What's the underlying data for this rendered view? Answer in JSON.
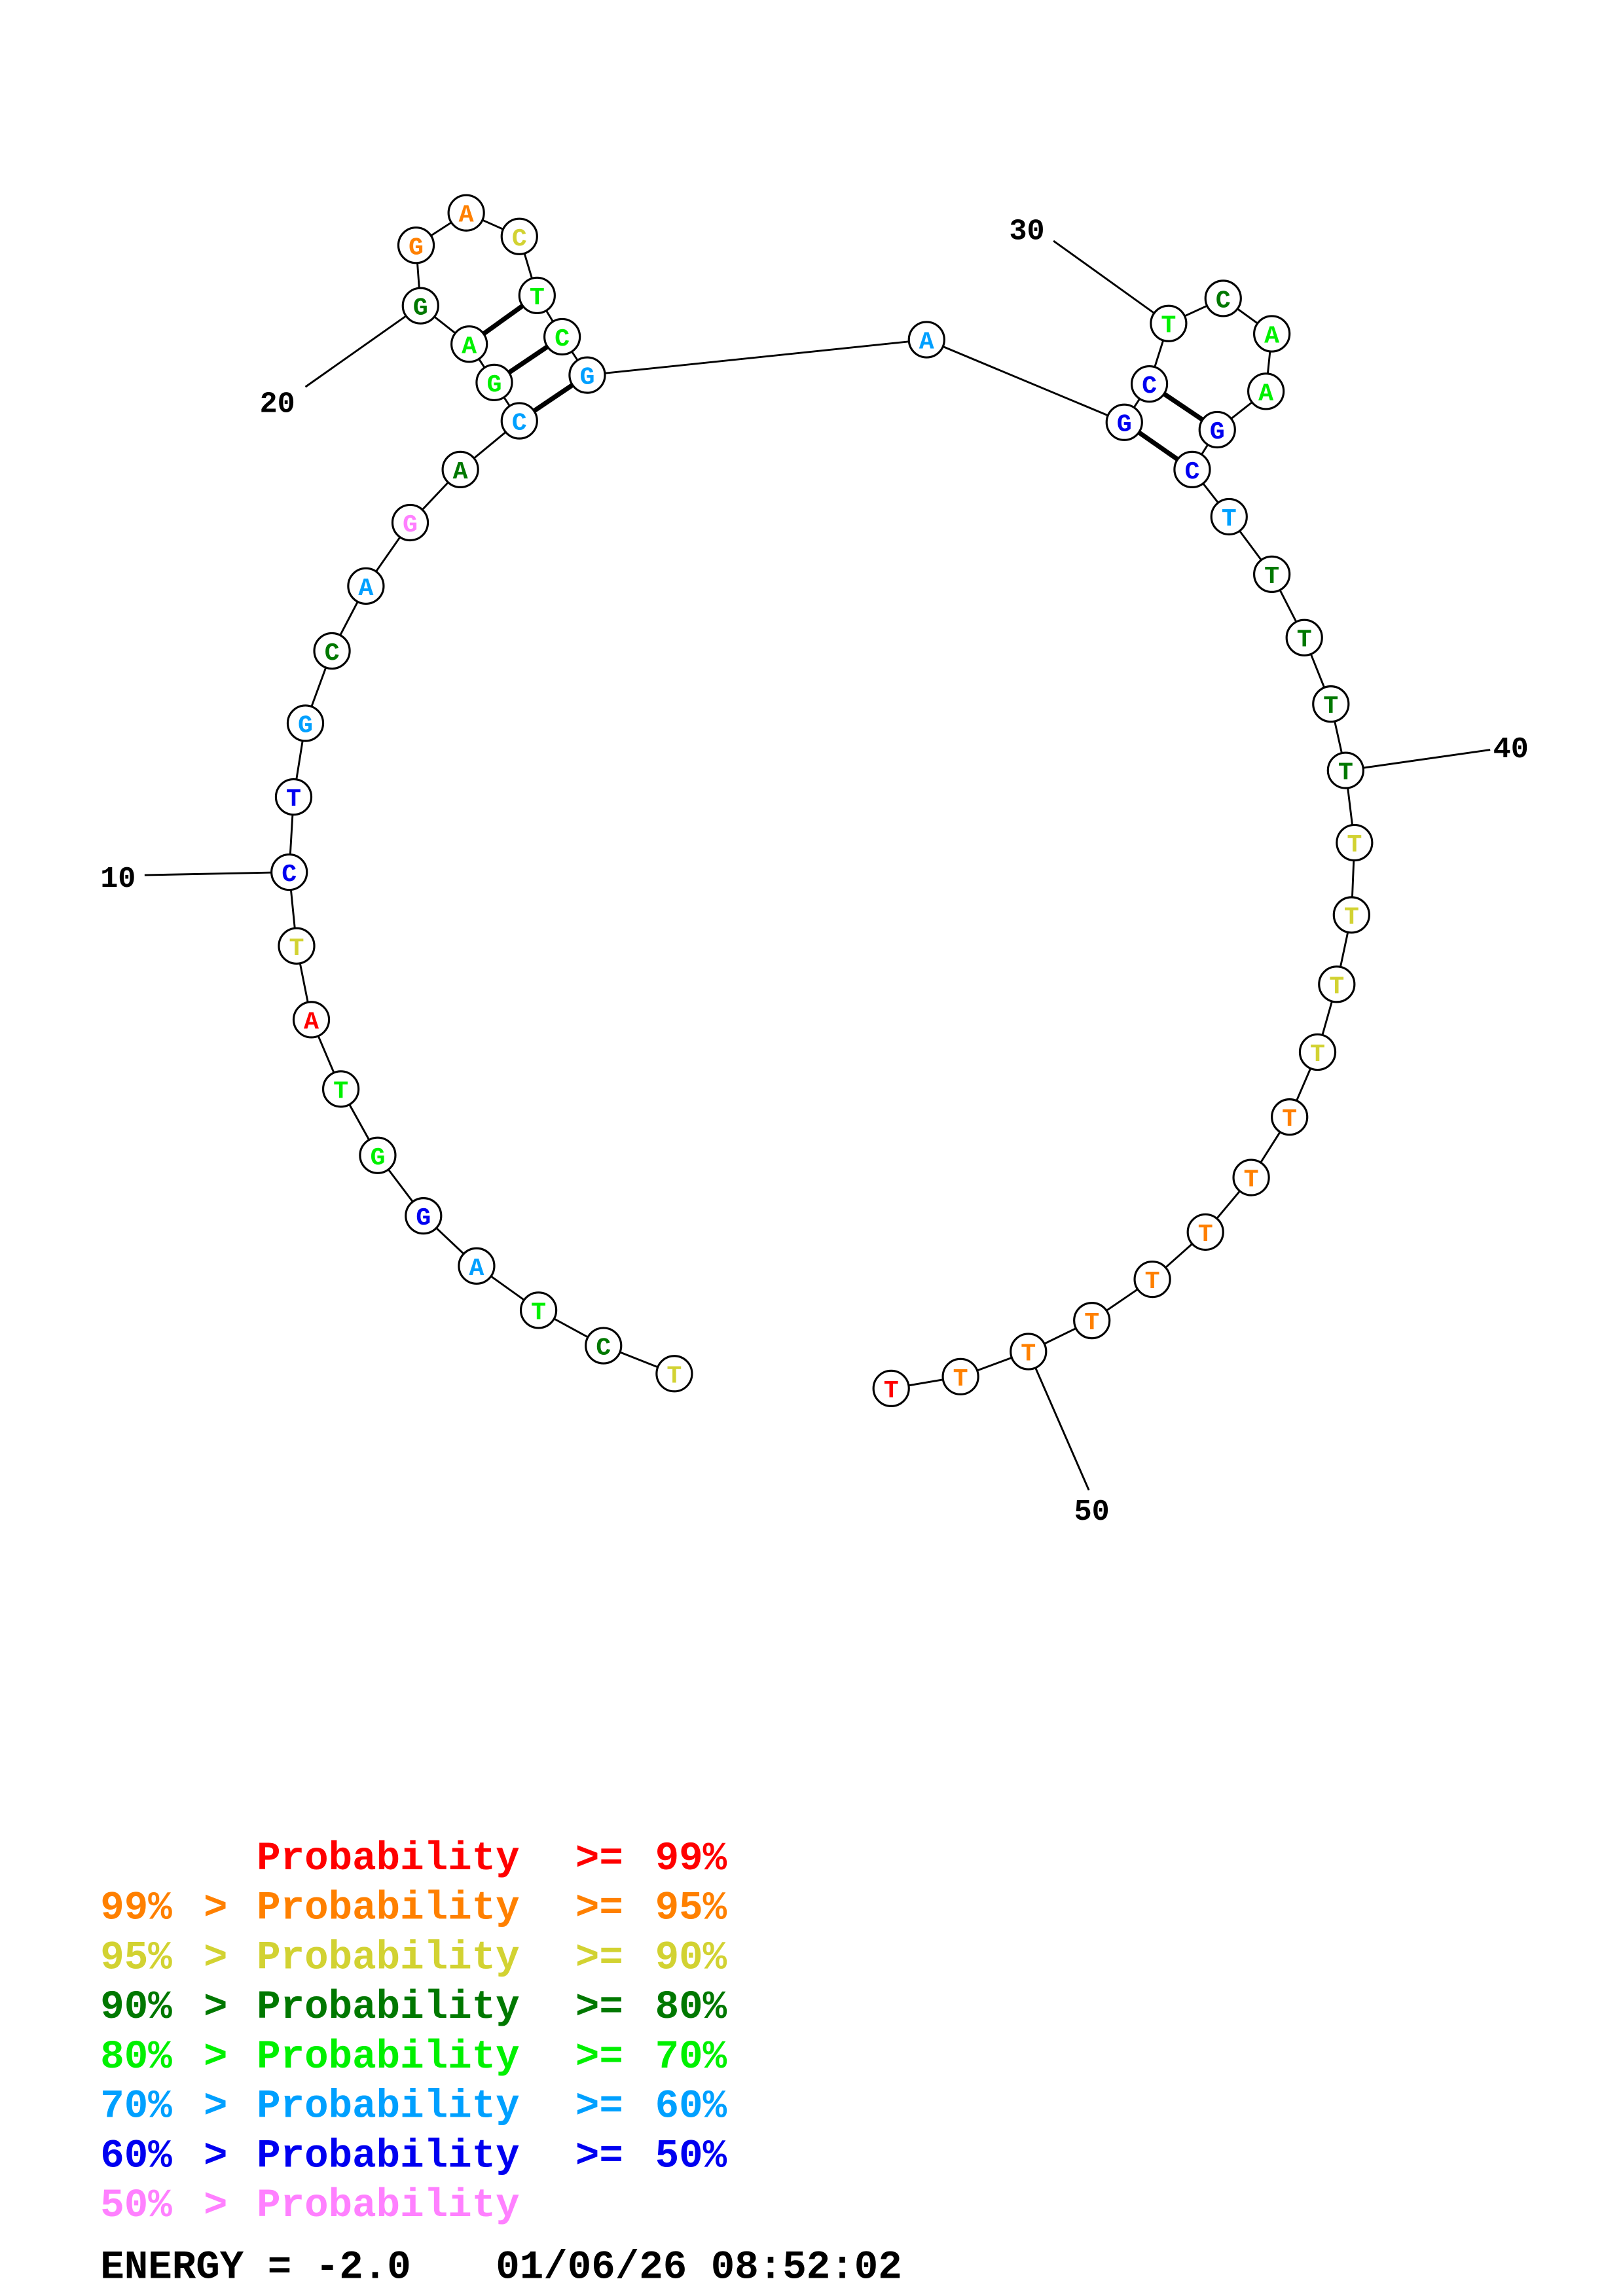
{
  "diagram": {
    "sequence": "TCTAGGTATCTGCAGACGAGGACTCGAGCTCAAGCTTTTTTTTTTTTTTTTT",
    "probability_class": [
      2,
      3,
      4,
      5,
      6,
      4,
      4,
      0,
      2,
      6,
      6,
      5,
      3,
      5,
      7,
      3,
      5,
      4,
      4,
      3,
      1,
      1,
      2,
      4,
      4,
      5,
      5,
      6,
      6,
      4,
      3,
      4,
      4,
      6,
      6,
      5,
      3,
      3,
      3,
      3,
      2,
      2,
      2,
      2,
      1,
      1,
      1,
      1,
      1,
      1,
      1,
      0
    ],
    "pairs": [
      [
        17,
        26
      ],
      [
        18,
        25
      ],
      [
        19,
        24
      ],
      [
        28,
        35
      ],
      [
        29,
        34
      ]
    ],
    "position_labels": [
      {
        "index": 10,
        "text": "10"
      },
      {
        "index": 20,
        "text": "20"
      },
      {
        "index": 30,
        "text": "30"
      },
      {
        "index": 40,
        "text": "40"
      },
      {
        "index": 50,
        "text": "50"
      }
    ]
  },
  "legend": {
    "colors": [
      "#ff0000",
      "#ff8000",
      "#d2d232",
      "#007800",
      "#00f000",
      "#00a0ff",
      "#0000f0",
      "#ff80ff"
    ],
    "rows": [
      {
        "prefix": "",
        "gt": "",
        "label": "Probability",
        "ge": ">=",
        "value": "99%"
      },
      {
        "prefix": "99%",
        "gt": ">",
        "label": "Probability",
        "ge": ">=",
        "value": "95%"
      },
      {
        "prefix": "95%",
        "gt": ">",
        "label": "Probability",
        "ge": ">=",
        "value": "90%"
      },
      {
        "prefix": "90%",
        "gt": ">",
        "label": "Probability",
        "ge": ">=",
        "value": "80%"
      },
      {
        "prefix": "80%",
        "gt": ">",
        "label": "Probability",
        "ge": ">=",
        "value": "70%"
      },
      {
        "prefix": "70%",
        "gt": ">",
        "label": "Probability",
        "ge": ">=",
        "value": "60%"
      },
      {
        "prefix": "60%",
        "gt": ">",
        "label": "Probability",
        "ge": ">=",
        "value": "50%"
      },
      {
        "prefix": "50%",
        "gt": ">",
        "label": "Probability",
        "ge": "",
        "value": ""
      }
    ]
  },
  "footer": {
    "energy": "ENERGY = -2.0",
    "timestamp": "01/06/26 08:52:02"
  }
}
